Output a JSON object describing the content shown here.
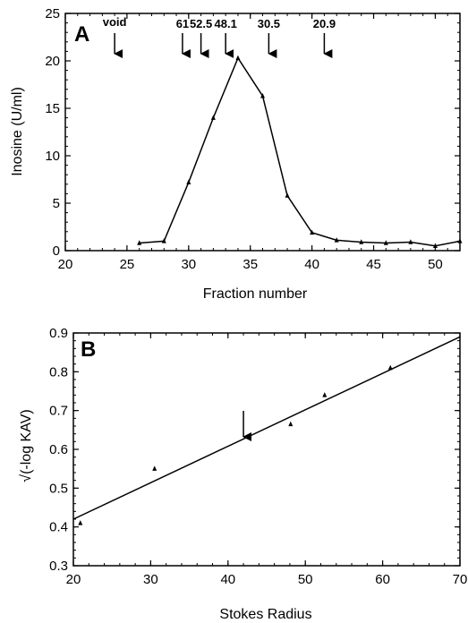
{
  "chart_data": [
    {
      "panel": "A",
      "type": "line",
      "xlabel": "Fraction number",
      "ylabel": "Inosine (U/ml)",
      "xlim": [
        20,
        52
      ],
      "ylim": [
        0,
        25
      ],
      "xticks": [
        20,
        25,
        30,
        35,
        40,
        45,
        50
      ],
      "yticks": [
        0,
        5,
        10,
        15,
        20,
        25
      ],
      "series": [
        {
          "x": [
            26,
            28,
            30,
            32,
            34,
            36,
            38,
            40,
            42,
            44,
            46,
            48,
            50,
            52
          ],
          "y": [
            0.8,
            1.0,
            7.2,
            14.0,
            20.3,
            16.3,
            5.8,
            1.9,
            1.1,
            0.9,
            0.8,
            0.9,
            0.5,
            1.0
          ]
        }
      ],
      "annotations": [
        {
          "label": "void",
          "x": 24
        },
        {
          "label": "61",
          "x": 29.5
        },
        {
          "label": "52.5",
          "x": 31
        },
        {
          "label": "48.1",
          "x": 33
        },
        {
          "label": "30.5",
          "x": 36.5
        },
        {
          "label": "20.9",
          "x": 41
        }
      ]
    },
    {
      "panel": "B",
      "type": "scatter",
      "xlabel": "Stokes Radius",
      "ylabel": "√(-log KAV)",
      "xlim": [
        20,
        70
      ],
      "ylim": [
        0.3,
        0.9
      ],
      "xticks": [
        20,
        30,
        40,
        50,
        60,
        70
      ],
      "yticks": [
        0.3,
        0.4,
        0.5,
        0.6,
        0.7,
        0.8,
        0.9
      ],
      "series": [
        {
          "x": [
            20.9,
            30.5,
            48.1,
            52.5,
            61
          ],
          "y": [
            0.41,
            0.55,
            0.665,
            0.74,
            0.81
          ]
        }
      ],
      "fit_line": {
        "x": [
          20,
          70
        ],
        "y": [
          0.42,
          0.89
        ]
      },
      "arrow_marker": {
        "x": 42,
        "y": 0.63
      }
    }
  ]
}
